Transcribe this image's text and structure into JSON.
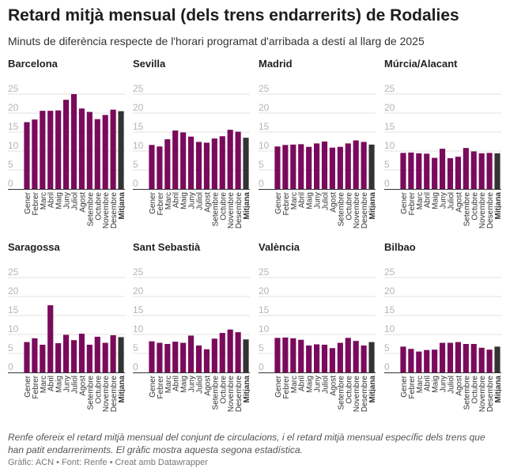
{
  "title": "Retard mitjà mensual (dels trens endarrerits) de Rodalies",
  "subtitle": "Minuts de diferència respecte de l'horari programat d'arribada a destí al llarg de 2025",
  "notes": "Renfe ofereix el retard mitjà mensual del conjunt de circulacions, i el retard mitjà mensual específic dels trens que han patit endarreriments. El gràfic mostra aquesta segona estadística.",
  "credit": "Gràfic: ACN • Font: Renfe • Creat amb Datawrapper",
  "colors": {
    "bar": "#7a0a5c",
    "average": "#333333",
    "grid": "#e2e2e2",
    "tick": "#b5b5b5"
  },
  "chart_data": {
    "type": "bar",
    "categories": [
      "Gener",
      "Febrer",
      "Marc",
      "Abril",
      "Maig",
      "Juny",
      "Juliol",
      "Agost",
      "Setembre",
      "Octubre",
      "Novembre",
      "Desembre",
      "Mitjana"
    ],
    "yticks": [
      "0",
      "5",
      "10",
      "15",
      "20",
      "25"
    ],
    "ylim": [
      0,
      25
    ],
    "panels": [
      {
        "name": "Barcelona",
        "values": [
          17.6,
          18.3,
          20.6,
          20.6,
          20.7,
          23.5,
          25.0,
          21.2,
          20.3,
          18.4,
          19.5,
          20.9,
          20.5
        ]
      },
      {
        "name": "Sevilla",
        "values": [
          11.6,
          11.2,
          13.1,
          15.4,
          14.9,
          13.8,
          12.4,
          12.2,
          13.3,
          13.9,
          15.6,
          15.1,
          13.5
        ]
      },
      {
        "name": "Madrid",
        "values": [
          11.2,
          11.6,
          11.7,
          11.8,
          11.1,
          12.0,
          12.5,
          10.9,
          11.1,
          12.0,
          12.8,
          12.4,
          11.7
        ]
      },
      {
        "name": "Múrcia/Alacant",
        "values": [
          9.5,
          9.6,
          9.4,
          9.3,
          8.2,
          10.6,
          8.1,
          8.5,
          10.8,
          9.9,
          9.4,
          9.5,
          9.4
        ]
      },
      {
        "name": "Saragossa",
        "values": [
          8.0,
          9.0,
          7.3,
          17.7,
          7.7,
          9.9,
          8.5,
          10.2,
          7.3,
          9.4,
          7.8,
          9.8,
          9.3
        ]
      },
      {
        "name": "Sant Sebastià",
        "values": [
          8.2,
          7.8,
          7.5,
          8.1,
          7.8,
          9.7,
          7.1,
          6.1,
          8.9,
          10.4,
          11.3,
          10.6,
          8.7
        ]
      },
      {
        "name": "València",
        "values": [
          9.1,
          9.2,
          9.0,
          8.6,
          7.1,
          7.4,
          7.3,
          6.4,
          7.8,
          9.1,
          8.3,
          7.1,
          8.0
        ]
      },
      {
        "name": "Bilbao",
        "values": [
          6.8,
          6.2,
          5.5,
          5.9,
          6.0,
          7.8,
          7.8,
          8.0,
          7.5,
          7.5,
          6.5,
          6.0,
          6.8
        ]
      }
    ]
  }
}
